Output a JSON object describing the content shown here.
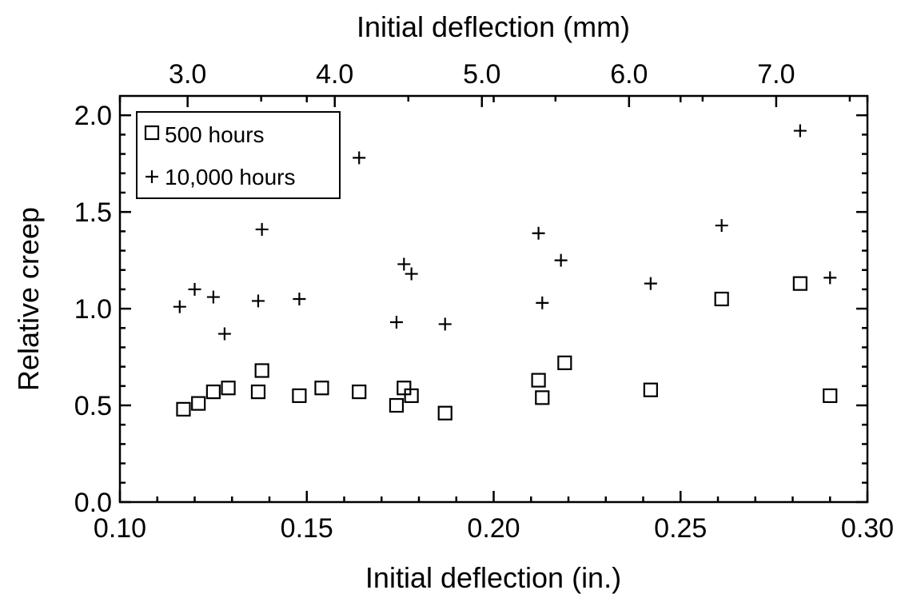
{
  "chart_data": {
    "type": "scatter",
    "title": "",
    "xlabel": "Initial deflection (in.)",
    "ylabel": "Relative creep",
    "x2label": "Initial deflection (mm)",
    "xlim": [
      0.1,
      0.3
    ],
    "ylim": [
      0.0,
      2.1
    ],
    "x2lim": [
      2.54,
      7.62
    ],
    "xticks": [
      "0.10",
      "0.15",
      "0.20",
      "0.25",
      "0.30"
    ],
    "yticks": [
      "0.0",
      "0.5",
      "1.0",
      "1.5",
      "2.0"
    ],
    "x2ticks": [
      "3.0",
      "4.0",
      "5.0",
      "6.0",
      "7.0"
    ],
    "grid": false,
    "legend_position": "top-left",
    "series": [
      {
        "name": "500 hours",
        "marker": "square",
        "points": [
          {
            "x": 0.117,
            "y": 0.48
          },
          {
            "x": 0.121,
            "y": 0.51
          },
          {
            "x": 0.125,
            "y": 0.57
          },
          {
            "x": 0.129,
            "y": 0.59
          },
          {
            "x": 0.137,
            "y": 0.57
          },
          {
            "x": 0.138,
            "y": 0.68
          },
          {
            "x": 0.148,
            "y": 0.55
          },
          {
            "x": 0.154,
            "y": 0.59
          },
          {
            "x": 0.164,
            "y": 0.57
          },
          {
            "x": 0.174,
            "y": 0.5
          },
          {
            "x": 0.176,
            "y": 0.59
          },
          {
            "x": 0.178,
            "y": 0.55
          },
          {
            "x": 0.187,
            "y": 0.46
          },
          {
            "x": 0.212,
            "y": 0.63
          },
          {
            "x": 0.213,
            "y": 0.54
          },
          {
            "x": 0.219,
            "y": 0.72
          },
          {
            "x": 0.242,
            "y": 0.58
          },
          {
            "x": 0.261,
            "y": 1.05
          },
          {
            "x": 0.282,
            "y": 1.13
          },
          {
            "x": 0.29,
            "y": 0.55
          }
        ]
      },
      {
        "name": "10,000 hours",
        "marker": "plus",
        "points": [
          {
            "x": 0.116,
            "y": 1.01
          },
          {
            "x": 0.12,
            "y": 1.1
          },
          {
            "x": 0.125,
            "y": 1.06
          },
          {
            "x": 0.128,
            "y": 0.87
          },
          {
            "x": 0.137,
            "y": 1.04
          },
          {
            "x": 0.138,
            "y": 1.41
          },
          {
            "x": 0.148,
            "y": 1.05
          },
          {
            "x": 0.164,
            "y": 1.78
          },
          {
            "x": 0.174,
            "y": 0.93
          },
          {
            "x": 0.176,
            "y": 1.23
          },
          {
            "x": 0.178,
            "y": 1.18
          },
          {
            "x": 0.187,
            "y": 0.92
          },
          {
            "x": 0.212,
            "y": 1.39
          },
          {
            "x": 0.213,
            "y": 1.03
          },
          {
            "x": 0.218,
            "y": 1.25
          },
          {
            "x": 0.242,
            "y": 1.13
          },
          {
            "x": 0.261,
            "y": 1.43
          },
          {
            "x": 0.282,
            "y": 1.92
          },
          {
            "x": 0.29,
            "y": 1.16
          }
        ]
      }
    ]
  }
}
